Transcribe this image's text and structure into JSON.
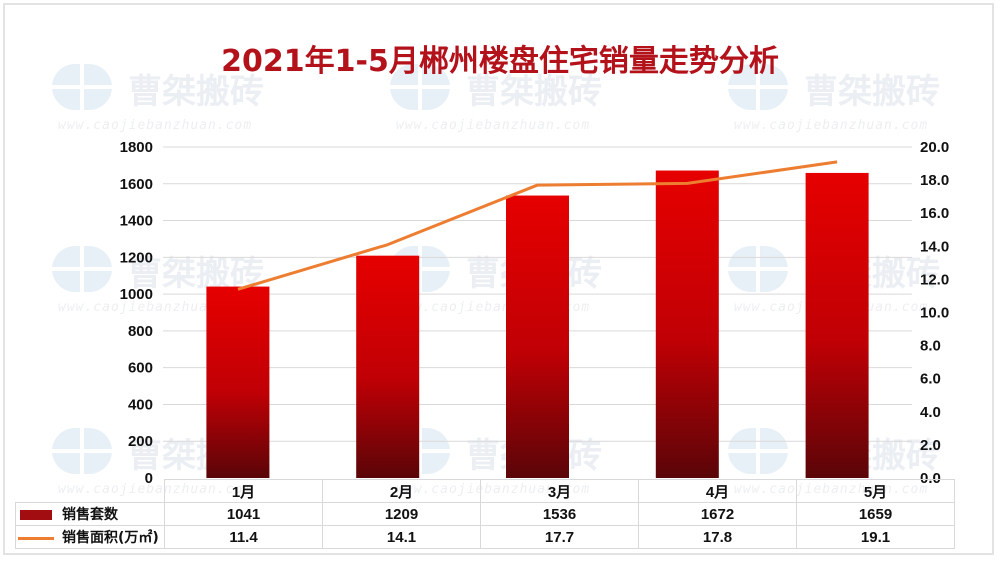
{
  "title": "2021年1-5月郴州楼盘住宅销量走势分析",
  "watermark": {
    "text": "曹桀搬砖",
    "url": "www.caojiebanzhuan.com"
  },
  "colors": {
    "title": "#b3121b",
    "bar_top": "#e60000",
    "bar_bottom": "#5a0508",
    "line": "#ed7d31",
    "grid": "#d9d9d9"
  },
  "chart_data": {
    "type": "bar+line",
    "title": "2021年1-5月郴州楼盘住宅销量走势分析",
    "categories": [
      "1月",
      "2月",
      "3月",
      "4月",
      "5月"
    ],
    "series": [
      {
        "name": "销售套数",
        "type": "bar",
        "axis": "left",
        "values": [
          1041,
          1209,
          1536,
          1672,
          1659
        ]
      },
      {
        "name": "销售面积(万㎡)",
        "type": "line",
        "axis": "right",
        "values": [
          11.4,
          14.1,
          17.7,
          17.8,
          19.1
        ]
      }
    ],
    "left_axis": {
      "ylim": [
        0,
        1800
      ],
      "ticks": [
        "0",
        "200",
        "400",
        "600",
        "800",
        "1000",
        "1200",
        "1400",
        "1600",
        "1800"
      ]
    },
    "right_axis": {
      "ylim": [
        0,
        20
      ],
      "ticks": [
        "0.0",
        "2.0",
        "4.0",
        "6.0",
        "8.0",
        "10.0",
        "12.0",
        "14.0",
        "16.0",
        "18.0",
        "20.0"
      ]
    },
    "grid": true,
    "legend": "data-table-below"
  },
  "table": {
    "header": [
      "1月",
      "2月",
      "3月",
      "4月",
      "5月"
    ],
    "rows": [
      {
        "label": "销售套数",
        "values": [
          "1041",
          "1209",
          "1536",
          "1672",
          "1659"
        ]
      },
      {
        "label": "销售面积(万㎡)",
        "values": [
          "11.4",
          "14.1",
          "17.7",
          "17.8",
          "19.1"
        ]
      }
    ]
  }
}
